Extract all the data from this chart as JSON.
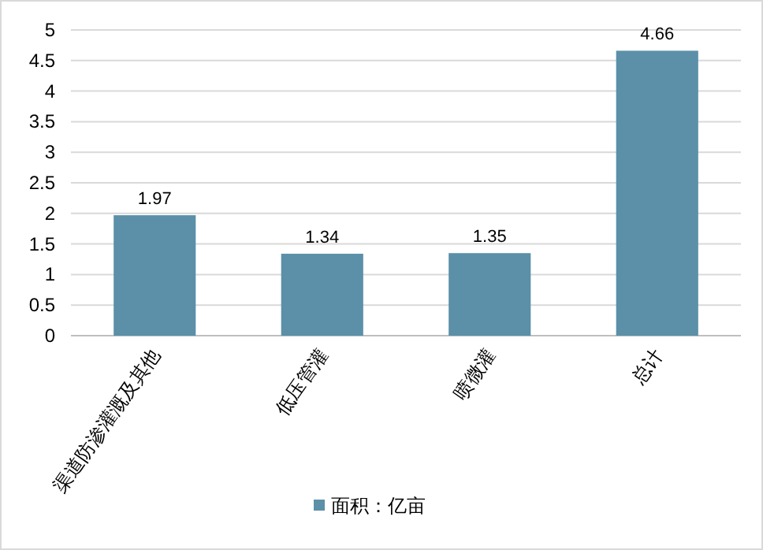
{
  "chart_data": {
    "type": "bar",
    "categories": [
      "渠道防渗灌溉及其他",
      "低压管灌",
      "喷微灌",
      "总计"
    ],
    "series": [
      {
        "name": "面积：亿亩",
        "color": "#5b90a8",
        "values": [
          1.97,
          1.34,
          1.35,
          4.66
        ]
      }
    ],
    "ylim": [
      0,
      5
    ],
    "yticks": [
      0,
      0.5,
      1,
      1.5,
      2,
      2.5,
      3,
      3.5,
      4,
      4.5,
      5
    ],
    "grid": "y",
    "data_labels": true,
    "legend": "bottom"
  }
}
